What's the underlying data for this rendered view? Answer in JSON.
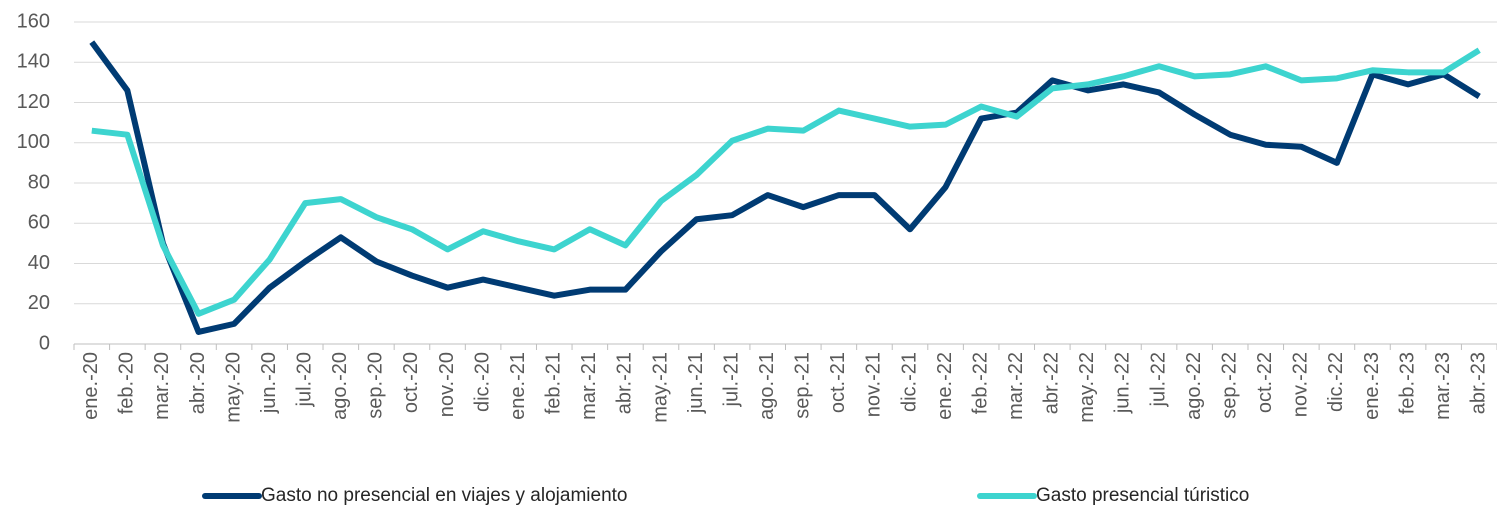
{
  "chart_data": {
    "type": "line",
    "categories": [
      "ene.-20",
      "feb.-20",
      "mar.-20",
      "abr.-20",
      "may.-20",
      "jun.-20",
      "jul.-20",
      "ago.-20",
      "sep.-20",
      "oct.-20",
      "nov.-20",
      "dic.-20",
      "ene.-21",
      "feb.-21",
      "mar.-21",
      "abr.-21",
      "may.-21",
      "jun.-21",
      "jul.-21",
      "ago.-21",
      "sep.-21",
      "oct.-21",
      "nov.-21",
      "dic.-21",
      "ene.-22",
      "feb.-22",
      "mar.-22",
      "abr.-22",
      "may.-22",
      "jun.-22",
      "jul.-22",
      "ago.-22",
      "sep.-22",
      "oct.-22",
      "nov.-22",
      "dic.-22",
      "ene.-23",
      "feb.-23",
      "mar.-23",
      "abr.-23"
    ],
    "series": [
      {
        "name": "Gasto no presencial en viajes y alojamiento",
        "color": "#003b73",
        "values": [
          150,
          126,
          50,
          6,
          10,
          28,
          41,
          53,
          41,
          34,
          28,
          32,
          28,
          24,
          27,
          27,
          46,
          62,
          64,
          74,
          68,
          74,
          74,
          57,
          78,
          112,
          115,
          131,
          126,
          129,
          125,
          114,
          104,
          99,
          98,
          90,
          134,
          129,
          134,
          123
        ]
      },
      {
        "name": "Gasto presencial túristico",
        "color": "#3dd4cf",
        "values": [
          106,
          104,
          49,
          15,
          22,
          42,
          70,
          72,
          63,
          57,
          47,
          56,
          51,
          47,
          57,
          49,
          71,
          84,
          101,
          107,
          106,
          116,
          112,
          108,
          109,
          118,
          113,
          127,
          129,
          133,
          138,
          133,
          134,
          138,
          131,
          132,
          136,
          135,
          135,
          146
        ]
      }
    ],
    "ylim": [
      0,
      160
    ],
    "yticks": [
      0,
      20,
      40,
      60,
      80,
      100,
      120,
      140,
      160
    ],
    "grid": true
  }
}
